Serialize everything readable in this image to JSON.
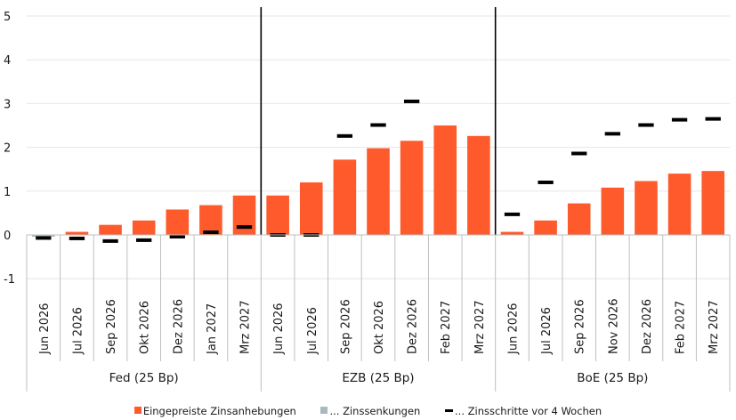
{
  "chart_data": {
    "type": "bar",
    "colors": {
      "hikes": "#ff5a2c",
      "cuts": "#a9b9bf",
      "marker": "#000000",
      "grid": "#e6e6e6"
    },
    "ylim": [
      -1,
      5
    ],
    "yticks": [
      "5",
      "4",
      "3",
      "2",
      "1",
      "0",
      "-1"
    ],
    "ytick_values": [
      5,
      4,
      3,
      2,
      1,
      0,
      -1
    ],
    "groups": [
      {
        "label": "Fed (25 Bp)",
        "categories": [
          "Jun 2026",
          "Jul 2026",
          "Sep 2026",
          "Okt 2026",
          "Dez 2026",
          "Jan 2027",
          "Mrz 2027"
        ],
        "hikes": [
          0,
          0.07,
          0.23,
          0.33,
          0.58,
          0.68,
          0.9
        ],
        "cuts": [
          -0.04,
          0,
          0,
          0,
          0,
          0,
          0
        ],
        "four_weeks_ago": [
          -0.07,
          -0.08,
          -0.14,
          -0.12,
          -0.04,
          0.06,
          0.18
        ]
      },
      {
        "label": "EZB (25 Bp)",
        "categories": [
          "Jun 2026",
          "Jul 2026",
          "Sep 2026",
          "Okt 2026",
          "Dez 2026",
          "Feb 2027",
          "Mrz 2027"
        ],
        "hikes": [
          0.9,
          1.2,
          1.72,
          1.98,
          2.15,
          2.5,
          2.26
        ],
        "cuts": [
          0,
          0,
          0,
          0,
          0,
          0,
          0
        ],
        "four_weeks_ago": [
          0,
          0,
          2.26,
          2.51,
          3.05,
          null,
          null
        ]
      },
      {
        "label": "BoE (25 Bp)",
        "categories": [
          "Jun 2026",
          "Jul 2026",
          "Sep 2026",
          "Nov 2026",
          "Dez 2026",
          "Feb 2027",
          "Mrz 2027"
        ],
        "hikes": [
          0.07,
          0.33,
          0.72,
          1.08,
          1.23,
          1.4,
          1.46
        ],
        "cuts": [
          0,
          0,
          0,
          0,
          0,
          0,
          0
        ],
        "four_weeks_ago": [
          0.47,
          1.2,
          1.86,
          2.31,
          2.51,
          2.63,
          2.65
        ]
      }
    ],
    "legend": {
      "hikes": "Eingepreiste Zinsanhebungen",
      "cuts": "... Zinssenkungen",
      "four_weeks_ago": "... Zinsschritte vor 4 Wochen"
    }
  }
}
